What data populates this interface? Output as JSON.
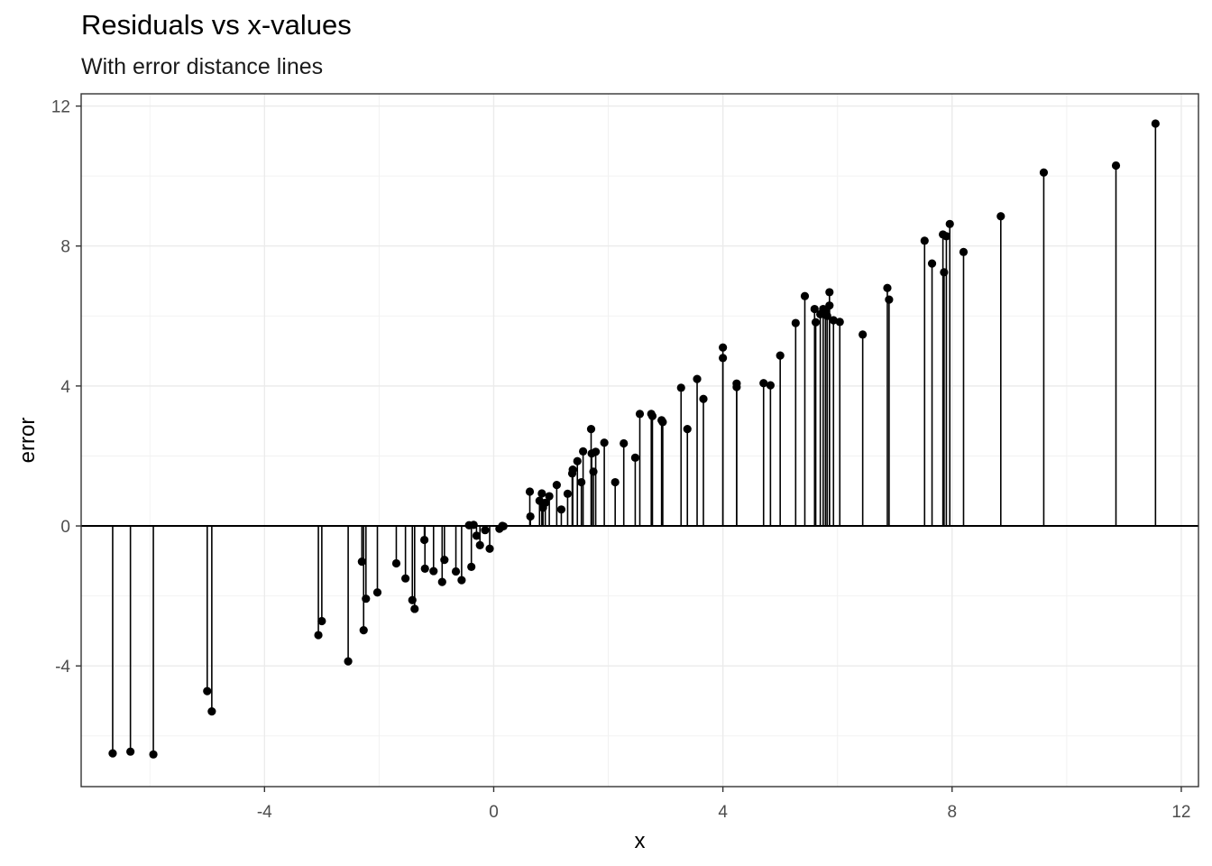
{
  "chart_data": {
    "type": "scatter",
    "title": "Residuals vs x-values",
    "subtitle": "With error distance lines",
    "xlabel": "x",
    "ylabel": "error",
    "xlim": [
      -7.2,
      12.3
    ],
    "ylim": [
      -7.45,
      12.35
    ],
    "x_ticks": [
      -4,
      0,
      4,
      8,
      12
    ],
    "y_ticks": [
      -4,
      0,
      4,
      8,
      12
    ],
    "x_tick_labels": [
      "-4",
      "0",
      "4",
      "8",
      "12"
    ],
    "y_tick_labels": [
      "-4",
      "0",
      "4",
      "8",
      "12"
    ],
    "grid": true,
    "reference_line_y": 0,
    "point_color": "#000000",
    "points": [
      {
        "x": -6.65,
        "y": -6.5
      },
      {
        "x": -6.34,
        "y": -6.45
      },
      {
        "x": -5.94,
        "y": -6.53
      },
      {
        "x": -5.0,
        "y": -4.72
      },
      {
        "x": -4.92,
        "y": -5.3
      },
      {
        "x": -3.06,
        "y": -3.12
      },
      {
        "x": -3.0,
        "y": -2.72
      },
      {
        "x": -2.54,
        "y": -3.87
      },
      {
        "x": -2.3,
        "y": -1.02
      },
      {
        "x": -2.27,
        "y": -2.98
      },
      {
        "x": -2.23,
        "y": -2.08
      },
      {
        "x": -2.03,
        "y": -1.9
      },
      {
        "x": -1.7,
        "y": -1.07
      },
      {
        "x": -1.54,
        "y": -1.5
      },
      {
        "x": -1.42,
        "y": -2.12
      },
      {
        "x": -1.38,
        "y": -2.37
      },
      {
        "x": -1.21,
        "y": -0.4
      },
      {
        "x": -1.2,
        "y": -1.22
      },
      {
        "x": -1.05,
        "y": -1.29
      },
      {
        "x": -0.9,
        "y": -1.6
      },
      {
        "x": -0.86,
        "y": -0.97
      },
      {
        "x": -0.66,
        "y": -1.3
      },
      {
        "x": -0.56,
        "y": -1.55
      },
      {
        "x": -0.43,
        "y": 0.02
      },
      {
        "x": -0.39,
        "y": -1.17
      },
      {
        "x": -0.35,
        "y": 0.03
      },
      {
        "x": -0.3,
        "y": -0.28
      },
      {
        "x": -0.24,
        "y": -0.55
      },
      {
        "x": -0.15,
        "y": -0.12
      },
      {
        "x": -0.07,
        "y": -0.65
      },
      {
        "x": 0.1,
        "y": -0.08
      },
      {
        "x": 0.15,
        "y": 0.0
      },
      {
        "x": 0.17,
        "y": -0.01
      },
      {
        "x": 0.63,
        "y": 0.98
      },
      {
        "x": 0.64,
        "y": 0.27
      },
      {
        "x": 0.8,
        "y": 0.72
      },
      {
        "x": 0.84,
        "y": 0.93
      },
      {
        "x": 0.86,
        "y": 0.52
      },
      {
        "x": 0.9,
        "y": 0.66
      },
      {
        "x": 0.97,
        "y": 0.85
      },
      {
        "x": 1.1,
        "y": 1.17
      },
      {
        "x": 1.18,
        "y": 0.47
      },
      {
        "x": 1.29,
        "y": 0.92
      },
      {
        "x": 1.37,
        "y": 1.5
      },
      {
        "x": 1.38,
        "y": 1.61
      },
      {
        "x": 1.46,
        "y": 1.85
      },
      {
        "x": 1.53,
        "y": 1.25
      },
      {
        "x": 1.56,
        "y": 2.13
      },
      {
        "x": 1.7,
        "y": 2.77
      },
      {
        "x": 1.71,
        "y": 2.07
      },
      {
        "x": 1.74,
        "y": 1.55
      },
      {
        "x": 1.78,
        "y": 2.12
      },
      {
        "x": 1.93,
        "y": 2.38
      },
      {
        "x": 2.12,
        "y": 1.25
      },
      {
        "x": 2.27,
        "y": 2.36
      },
      {
        "x": 2.47,
        "y": 1.95
      },
      {
        "x": 2.55,
        "y": 3.2
      },
      {
        "x": 2.75,
        "y": 3.2
      },
      {
        "x": 2.77,
        "y": 3.14
      },
      {
        "x": 2.93,
        "y": 3.02
      },
      {
        "x": 2.95,
        "y": 2.97
      },
      {
        "x": 3.27,
        "y": 3.95
      },
      {
        "x": 3.38,
        "y": 2.77
      },
      {
        "x": 3.55,
        "y": 4.2
      },
      {
        "x": 3.66,
        "y": 3.63
      },
      {
        "x": 4.0,
        "y": 5.1
      },
      {
        "x": 4.0,
        "y": 4.8
      },
      {
        "x": 4.24,
        "y": 4.07
      },
      {
        "x": 4.24,
        "y": 3.97
      },
      {
        "x": 4.71,
        "y": 4.08
      },
      {
        "x": 4.83,
        "y": 4.02
      },
      {
        "x": 5.0,
        "y": 4.87
      },
      {
        "x": 5.27,
        "y": 5.8
      },
      {
        "x": 5.43,
        "y": 6.57
      },
      {
        "x": 5.6,
        "y": 6.2
      },
      {
        "x": 5.62,
        "y": 5.82
      },
      {
        "x": 5.7,
        "y": 6.05
      },
      {
        "x": 5.75,
        "y": 6.2
      },
      {
        "x": 5.79,
        "y": 6.11
      },
      {
        "x": 5.82,
        "y": 6.0
      },
      {
        "x": 5.86,
        "y": 6.3
      },
      {
        "x": 5.86,
        "y": 6.68
      },
      {
        "x": 5.93,
        "y": 5.88
      },
      {
        "x": 6.04,
        "y": 5.83
      },
      {
        "x": 6.44,
        "y": 5.47
      },
      {
        "x": 6.87,
        "y": 6.8
      },
      {
        "x": 6.9,
        "y": 6.47
      },
      {
        "x": 7.52,
        "y": 8.15
      },
      {
        "x": 7.65,
        "y": 7.5
      },
      {
        "x": 7.84,
        "y": 8.33
      },
      {
        "x": 7.86,
        "y": 7.25
      },
      {
        "x": 7.9,
        "y": 8.28
      },
      {
        "x": 7.96,
        "y": 8.63
      },
      {
        "x": 8.2,
        "y": 7.83
      },
      {
        "x": 8.85,
        "y": 8.85
      },
      {
        "x": 9.6,
        "y": 10.1
      },
      {
        "x": 10.86,
        "y": 10.3
      },
      {
        "x": 11.55,
        "y": 11.5
      }
    ]
  }
}
